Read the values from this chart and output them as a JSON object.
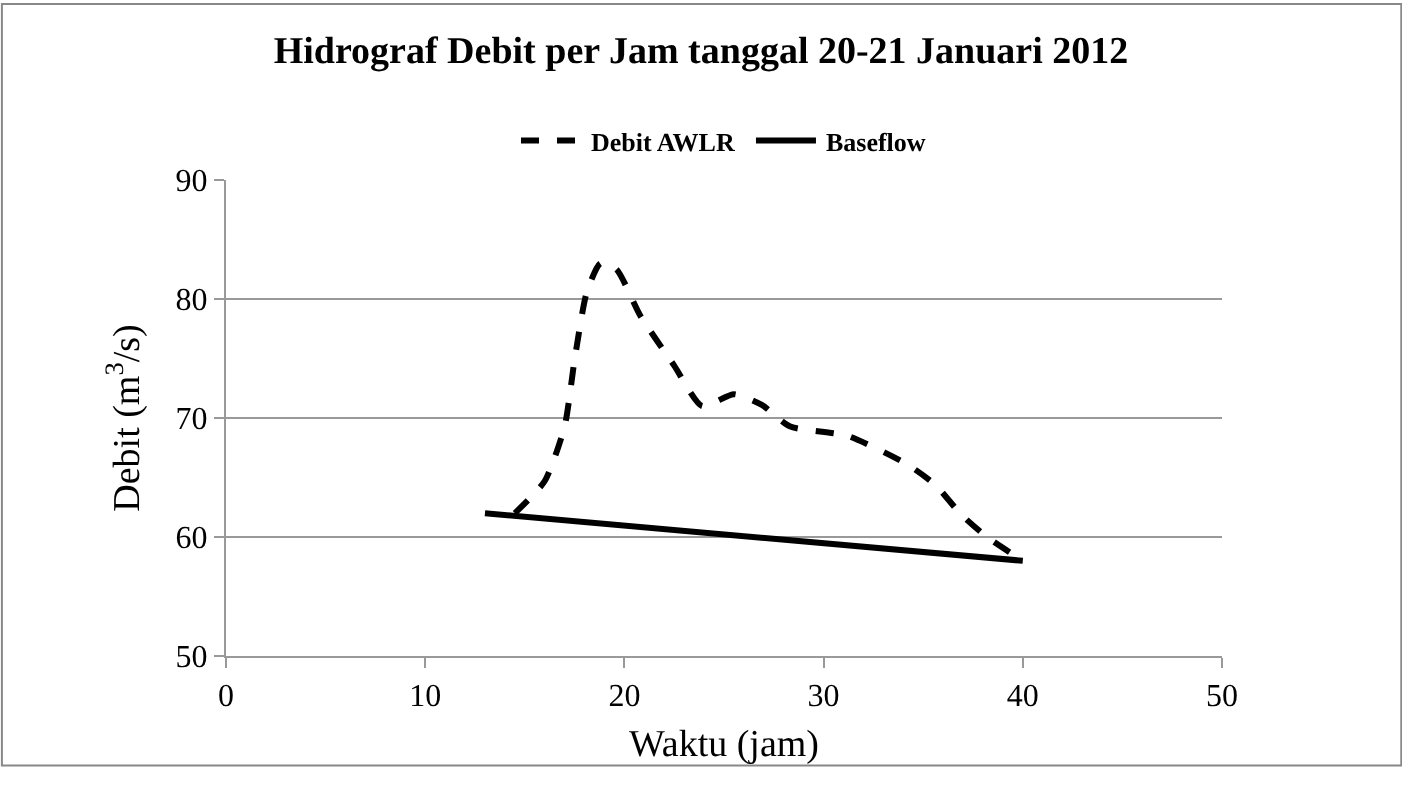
{
  "chart_data": {
    "type": "line",
    "title": "Hidrograf Debit per Jam tanggal 20-21 Januari 2012",
    "xlabel": "Waktu (jam)",
    "ylabel": "Debit (m$^{3}$/s)",
    "xlim": [
      0,
      50
    ],
    "xticks": [
      0,
      10,
      20,
      30,
      40,
      50
    ],
    "ylim": [
      50,
      90
    ],
    "yticks": [
      50,
      60,
      70,
      80,
      90
    ],
    "grid": "y",
    "legend": "top",
    "marker": "none",
    "series": [
      {
        "name": "Debit AWLR",
        "color": "#000000",
        "line_style": "dashed",
        "x": [
          14.5,
          16,
          17,
          17.5,
          18.1,
          18.8,
          19.6,
          20.8,
          22.5,
          23.9,
          25.5,
          26.9,
          28.3,
          31.2,
          34.2,
          35.6,
          36.9,
          38.2,
          40
        ],
        "values": [
          62,
          64.7,
          69.3,
          74.9,
          80.5,
          83,
          82.5,
          78.6,
          74.4,
          71,
          72,
          71.1,
          69.3,
          68.5,
          66.1,
          64.4,
          61.9,
          60,
          58
        ]
      },
      {
        "name": "Baseflow",
        "color": "#000000",
        "line_style": "solid",
        "x": [
          13,
          40
        ],
        "values": [
          62,
          58
        ]
      }
    ]
  }
}
